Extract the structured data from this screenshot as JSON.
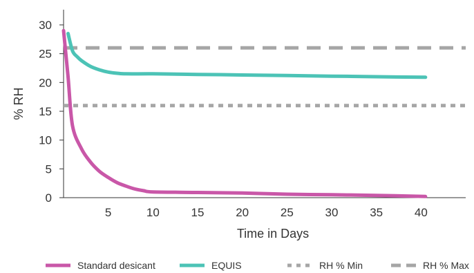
{
  "chart_data": {
    "type": "line",
    "xlabel": "Time in Days",
    "ylabel": "% RH",
    "xlim": [
      0,
      45
    ],
    "ylim": [
      0,
      30
    ],
    "x_ticks": [
      5,
      10,
      15,
      20,
      25,
      30,
      35,
      40
    ],
    "y_ticks": [
      0,
      5,
      10,
      15,
      20,
      25,
      30
    ],
    "grid": false,
    "legend_position": "bottom",
    "series": [
      {
        "name": "Standard desicant",
        "color": "#c957a8",
        "style": "solid",
        "x": [
          0,
          0.5,
          1,
          2,
          3,
          4,
          5,
          6,
          7,
          8,
          9,
          10,
          15,
          20,
          25,
          30,
          35,
          40.5
        ],
        "y": [
          29,
          21,
          12.5,
          8.5,
          6.2,
          4.6,
          3.5,
          2.6,
          2.0,
          1.5,
          1.2,
          1.0,
          0.9,
          0.8,
          0.6,
          0.5,
          0.4,
          0.2
        ]
      },
      {
        "name": "EQUIS",
        "color": "#4cc3b6",
        "style": "solid",
        "x": [
          0.5,
          1,
          1.5,
          2,
          3,
          4,
          5,
          6,
          7,
          10,
          15,
          20,
          25,
          30,
          35,
          40.5
        ],
        "y": [
          28.5,
          25.5,
          24.5,
          23.8,
          22.8,
          22.2,
          21.8,
          21.6,
          21.5,
          21.5,
          21.4,
          21.3,
          21.2,
          21.1,
          21.0,
          20.9
        ]
      },
      {
        "name": "RH % Min",
        "color": "#a6a6a6",
        "style": "dotted",
        "x": [
          0,
          45
        ],
        "y": [
          16,
          16
        ]
      },
      {
        "name": "RH % Max",
        "color": "#a6a6a6",
        "style": "dashed",
        "x": [
          0,
          45
        ],
        "y": [
          26,
          26
        ]
      }
    ]
  }
}
